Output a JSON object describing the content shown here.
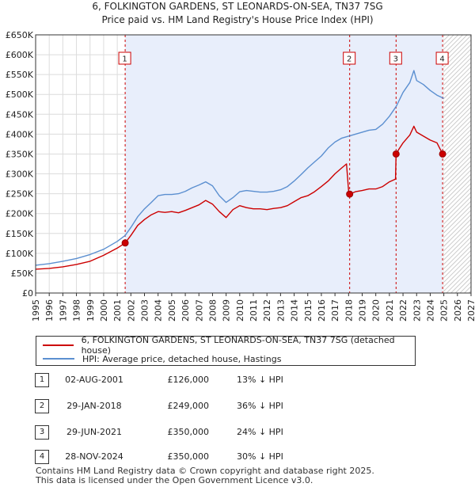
{
  "chart_data": {
    "type": "line",
    "title": "6, FOLKINGTON GARDENS, ST LEONARDS-ON-SEA, TN37 7SG",
    "subtitle": "Price paid vs. HM Land Registry's House Price Index (HPI)",
    "xlim": [
      1995,
      2027
    ],
    "ylim": [
      0,
      650000
    ],
    "x_ticks": [
      "1995",
      "1996",
      "1997",
      "1998",
      "1999",
      "2000",
      "2001",
      "2002",
      "2003",
      "2004",
      "2005",
      "2006",
      "2007",
      "2008",
      "2009",
      "2010",
      "2011",
      "2012",
      "2013",
      "2014",
      "2015",
      "2016",
      "2017",
      "2018",
      "2019",
      "2020",
      "2021",
      "2022",
      "2023",
      "2024",
      "2025",
      "2026",
      "2027"
    ],
    "y_ticks": [
      {
        "value": 0,
        "label": "£0"
      },
      {
        "value": 50000,
        "label": "£50K"
      },
      {
        "value": 100000,
        "label": "£100K"
      },
      {
        "value": 150000,
        "label": "£150K"
      },
      {
        "value": 200000,
        "label": "£200K"
      },
      {
        "value": 250000,
        "label": "£250K"
      },
      {
        "value": 300000,
        "label": "£300K"
      },
      {
        "value": 350000,
        "label": "£350K"
      },
      {
        "value": 400000,
        "label": "£400K"
      },
      {
        "value": 450000,
        "label": "£450K"
      },
      {
        "value": 500000,
        "label": "£500K"
      },
      {
        "value": 550000,
        "label": "£550K"
      },
      {
        "value": 600000,
        "label": "£600K"
      },
      {
        "value": 650000,
        "label": "£650K"
      }
    ],
    "shaded_range": [
      2001.58,
      2024.91
    ],
    "hatched_from": 2025.0,
    "series": [
      {
        "name": "6, FOLKINGTON GARDENS, ST LEONARDS-ON-SEA, TN37 7SG (detached house)",
        "color": "#cc0000",
        "points": [
          [
            1995.0,
            60000
          ],
          [
            1996.0,
            62000
          ],
          [
            1997.0,
            66000
          ],
          [
            1998.0,
            72000
          ],
          [
            1999.0,
            80000
          ],
          [
            2000.0,
            95000
          ],
          [
            2001.0,
            113000
          ],
          [
            2001.58,
            126000
          ],
          [
            2002.0,
            145000
          ],
          [
            2002.5,
            170000
          ],
          [
            2003.0,
            185000
          ],
          [
            2003.5,
            197000
          ],
          [
            2004.0,
            205000
          ],
          [
            2004.5,
            203000
          ],
          [
            2005.0,
            205000
          ],
          [
            2005.5,
            202000
          ],
          [
            2006.0,
            208000
          ],
          [
            2006.5,
            215000
          ],
          [
            2007.0,
            222000
          ],
          [
            2007.5,
            233000
          ],
          [
            2008.0,
            224000
          ],
          [
            2008.5,
            205000
          ],
          [
            2009.0,
            190000
          ],
          [
            2009.5,
            210000
          ],
          [
            2010.0,
            220000
          ],
          [
            2010.5,
            215000
          ],
          [
            2011.0,
            212000
          ],
          [
            2011.5,
            212000
          ],
          [
            2012.0,
            210000
          ],
          [
            2012.5,
            213000
          ],
          [
            2013.0,
            215000
          ],
          [
            2013.5,
            220000
          ],
          [
            2014.0,
            230000
          ],
          [
            2014.5,
            240000
          ],
          [
            2015.0,
            245000
          ],
          [
            2015.5,
            255000
          ],
          [
            2016.0,
            268000
          ],
          [
            2016.5,
            282000
          ],
          [
            2017.0,
            300000
          ],
          [
            2017.5,
            315000
          ],
          [
            2017.85,
            325000
          ],
          [
            2018.0,
            258000
          ],
          [
            2018.08,
            249000
          ],
          [
            2018.5,
            255000
          ],
          [
            2019.0,
            258000
          ],
          [
            2019.5,
            262000
          ],
          [
            2020.0,
            262000
          ],
          [
            2020.5,
            268000
          ],
          [
            2021.0,
            280000
          ],
          [
            2021.45,
            287000
          ],
          [
            2021.49,
            350000
          ],
          [
            2021.7,
            362000
          ],
          [
            2022.0,
            378000
          ],
          [
            2022.5,
            398000
          ],
          [
            2022.8,
            420000
          ],
          [
            2023.0,
            405000
          ],
          [
            2023.5,
            395000
          ],
          [
            2024.0,
            385000
          ],
          [
            2024.5,
            378000
          ],
          [
            2024.91,
            350000
          ]
        ]
      },
      {
        "name": "HPI: Average price, detached house, Hastings",
        "color": "#5b8fd0",
        "points": [
          [
            1995.0,
            70000
          ],
          [
            1996.0,
            74000
          ],
          [
            1997.0,
            80000
          ],
          [
            1998.0,
            87000
          ],
          [
            1999.0,
            97000
          ],
          [
            2000.0,
            110000
          ],
          [
            2001.0,
            130000
          ],
          [
            2001.58,
            145000
          ],
          [
            2002.0,
            165000
          ],
          [
            2002.5,
            192000
          ],
          [
            2003.0,
            212000
          ],
          [
            2003.5,
            228000
          ],
          [
            2004.0,
            245000
          ],
          [
            2004.5,
            248000
          ],
          [
            2005.0,
            248000
          ],
          [
            2005.5,
            250000
          ],
          [
            2006.0,
            256000
          ],
          [
            2006.5,
            265000
          ],
          [
            2007.0,
            272000
          ],
          [
            2007.5,
            280000
          ],
          [
            2008.0,
            270000
          ],
          [
            2008.5,
            245000
          ],
          [
            2009.0,
            228000
          ],
          [
            2009.5,
            240000
          ],
          [
            2010.0,
            255000
          ],
          [
            2010.5,
            258000
          ],
          [
            2011.0,
            256000
          ],
          [
            2011.5,
            254000
          ],
          [
            2012.0,
            254000
          ],
          [
            2012.5,
            256000
          ],
          [
            2013.0,
            260000
          ],
          [
            2013.5,
            268000
          ],
          [
            2014.0,
            282000
          ],
          [
            2014.5,
            298000
          ],
          [
            2015.0,
            315000
          ],
          [
            2015.5,
            330000
          ],
          [
            2016.0,
            345000
          ],
          [
            2016.5,
            365000
          ],
          [
            2017.0,
            380000
          ],
          [
            2017.5,
            390000
          ],
          [
            2018.0,
            395000
          ],
          [
            2018.5,
            400000
          ],
          [
            2019.0,
            405000
          ],
          [
            2019.5,
            410000
          ],
          [
            2020.0,
            412000
          ],
          [
            2020.5,
            425000
          ],
          [
            2021.0,
            445000
          ],
          [
            2021.5,
            470000
          ],
          [
            2022.0,
            505000
          ],
          [
            2022.5,
            530000
          ],
          [
            2022.8,
            560000
          ],
          [
            2023.0,
            535000
          ],
          [
            2023.5,
            525000
          ],
          [
            2024.0,
            510000
          ],
          [
            2024.5,
            498000
          ],
          [
            2025.0,
            490000
          ]
        ]
      }
    ],
    "sales": [
      {
        "label": "1",
        "x": 2001.58,
        "y": 126000
      },
      {
        "label": "2",
        "x": 2018.08,
        "y": 249000
      },
      {
        "label": "3",
        "x": 2021.49,
        "y": 350000
      },
      {
        "label": "4",
        "x": 2024.91,
        "y": 350000
      }
    ]
  },
  "legend": {
    "property_label": "6, FOLKINGTON GARDENS, ST LEONARDS-ON-SEA, TN37 7SG (detached house)",
    "hpi_label": "HPI: Average price, detached house, Hastings"
  },
  "transactions": [
    {
      "num": "1",
      "date": "02-AUG-2001",
      "price": "£126,000",
      "hpi": "13% ↓ HPI"
    },
    {
      "num": "2",
      "date": "29-JAN-2018",
      "price": "£249,000",
      "hpi": "36% ↓ HPI"
    },
    {
      "num": "3",
      "date": "29-JUN-2021",
      "price": "£350,000",
      "hpi": "24% ↓ HPI"
    },
    {
      "num": "4",
      "date": "28-NOV-2024",
      "price": "£350,000",
      "hpi": "30% ↓ HPI"
    }
  ],
  "footer": {
    "line1": "Contains HM Land Registry data © Crown copyright and database right 2025.",
    "line2": "This data is licensed under the Open Government Licence v3.0."
  }
}
